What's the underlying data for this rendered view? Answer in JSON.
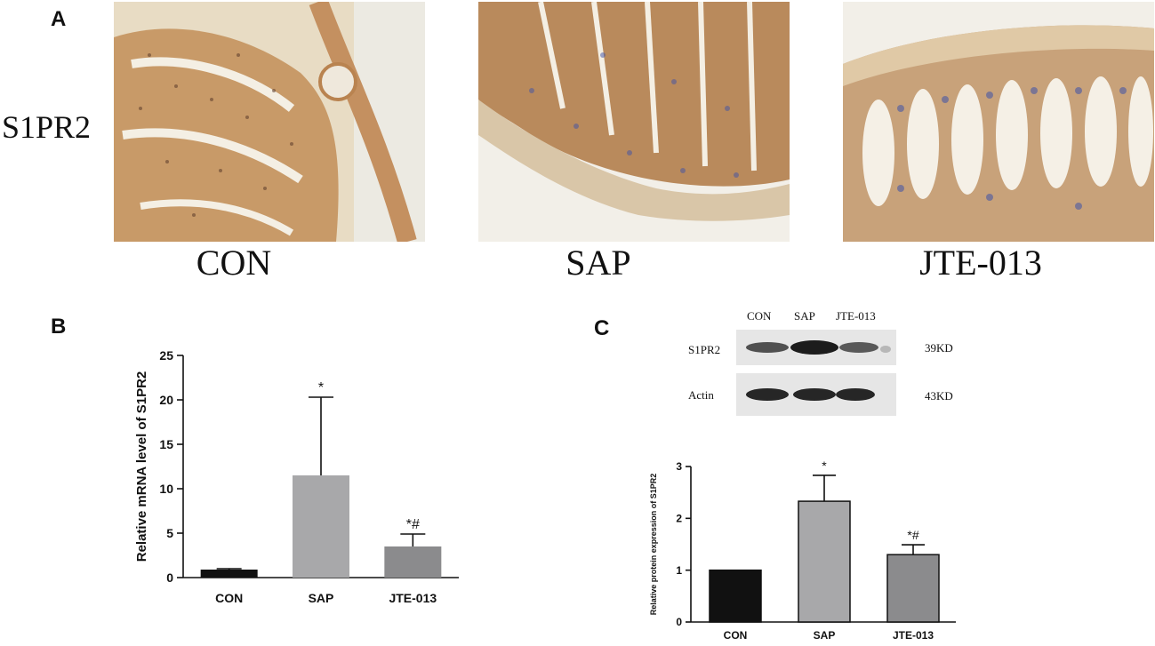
{
  "panel_a": {
    "letter": "A",
    "row_label": "S1PR2",
    "captions": [
      "CON",
      "SAP",
      "JTE-013"
    ]
  },
  "panel_b": {
    "letter": "B"
  },
  "panel_c": {
    "letter": "C",
    "blot": {
      "lanes": [
        "CON",
        "SAP",
        "JTE-013"
      ],
      "rows": [
        {
          "label": "S1PR2",
          "size": "39KD"
        },
        {
          "label": "Actin",
          "size": "43KD"
        }
      ]
    }
  },
  "colors": {
    "con": "#111111",
    "sap": "#a8a8aa",
    "jte": "#8b8b8d",
    "tissue_brown": "#b98350",
    "nuclei_blue": "#3e52a8"
  },
  "chart_data": [
    {
      "type": "bar",
      "categories": [
        "CON",
        "SAP",
        "JTE-013"
      ],
      "values": [
        0.9,
        11.5,
        3.5
      ],
      "errors": [
        0.1,
        8.8,
        1.4
      ],
      "annotations": [
        "",
        "*",
        "*#"
      ],
      "xlabel": "",
      "ylabel": "Relative mRNA level of S1PR2",
      "ylim": [
        0,
        25
      ],
      "yticks": [
        0,
        5,
        10,
        15,
        20,
        25
      ]
    },
    {
      "type": "bar",
      "categories": [
        "CON",
        "SAP",
        "JTE-013"
      ],
      "values": [
        1.0,
        2.33,
        1.3
      ],
      "errors": [
        0,
        0.5,
        0.19
      ],
      "annotations": [
        "",
        "*",
        "*#"
      ],
      "xlabel": "",
      "ylabel": "Relative protein expression of S1PR2",
      "ylim": [
        0,
        3
      ],
      "yticks": [
        0,
        1,
        2,
        3
      ]
    }
  ]
}
